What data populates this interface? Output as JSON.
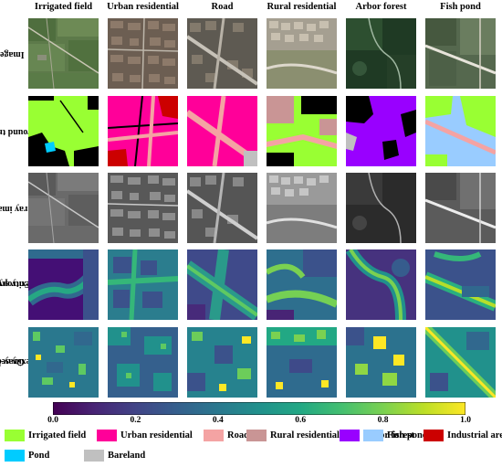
{
  "columns": [
    "Irrigated field",
    "Urban residential",
    "Road",
    "Rural residential",
    "Arbor forest",
    "Fish pond"
  ],
  "rows": [
    {
      "label": "Image",
      "lines": [
        "Image"
      ]
    },
    {
      "label": "Ground truth",
      "lines": [
        "Ground truth"
      ]
    },
    {
      "label": "Gray image",
      "lines": [
        "Gray image"
      ]
    },
    {
      "label": "Entropy-based complexity score",
      "lines": [
        "Entropy-based",
        "complexity score"
      ]
    },
    {
      "label": "Gray-based complexity score",
      "lines": [
        "Gray-based",
        "complexity score"
      ]
    }
  ],
  "colorbar": {
    "colormap": "viridis",
    "range": [
      0.0,
      1.0
    ],
    "ticks": [
      "0.0",
      "0.2",
      "0.4",
      "0.6",
      "0.8",
      "1.0"
    ],
    "tick_values": [
      0.0,
      0.2,
      0.4,
      0.6,
      0.8,
      1.0
    ]
  },
  "legend": [
    {
      "label": "Irrigated field",
      "color": "#99ff33"
    },
    {
      "label": "Urban residential",
      "color": "#ff0099"
    },
    {
      "label": "Road",
      "color": "#f4a3a3"
    },
    {
      "label": "Rural residential",
      "color": "#c99595"
    },
    {
      "label": "Arbor forest",
      "color": "#9900ff"
    },
    {
      "label": "Fish pond",
      "color": "#99ccff"
    },
    {
      "label": "Industrial area",
      "color": "#cc0000"
    },
    {
      "label": "Pond",
      "color": "#00ccff"
    },
    {
      "label": "Bareland",
      "color": "#c0c0c0"
    }
  ]
}
